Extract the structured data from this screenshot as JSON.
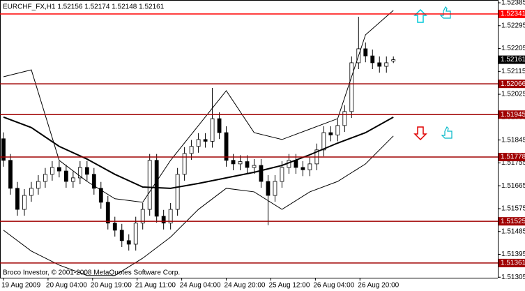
{
  "chart_data": {
    "type": "candlestick",
    "title": "EURCHF_FX,H1  1.52156 1.52174 1.52148 1.52161",
    "footer": "Broco Investor, © 2001-2008 MetaQuotes Software Corp.",
    "xlim": [
      -0.5,
      71
    ],
    "ylim": [
      1.51303,
      1.52396
    ],
    "xticks": [
      {
        "value": 0,
        "label": "19 Aug 2009"
      },
      {
        "value": 6.4,
        "label": "20 Aug 04:00"
      },
      {
        "value": 12.8,
        "label": "20 Aug 19:00"
      },
      {
        "value": 19.2,
        "label": "21 Aug 11:00"
      },
      {
        "value": 25.6,
        "label": "24 Aug 04:00"
      },
      {
        "value": 32,
        "label": "24 Aug 20:00"
      },
      {
        "value": 38.4,
        "label": "25 Aug 12:00"
      },
      {
        "value": 44.8,
        "label": "26 Aug 04:00"
      },
      {
        "value": 51.2,
        "label": "26 Aug 20:00"
      }
    ],
    "yticks": [
      1.52385,
      1.52295,
      1.52205,
      1.52115,
      1.52025,
      1.51935,
      1.51845,
      1.51755,
      1.51665,
      1.51575,
      1.51485,
      1.51395,
      1.51305
    ],
    "open": [
      1.5185,
      1.51765,
      1.51655,
      1.51572,
      1.51627,
      1.51655,
      1.51682,
      1.5171,
      1.51737,
      1.51723,
      1.51682,
      1.51696,
      1.51737,
      1.5171,
      1.51655,
      1.516,
      1.51518,
      1.5149,
      1.51449,
      1.51435,
      1.51518,
      1.51572,
      1.51765,
      1.51545,
      1.51518,
      1.51572,
      1.5171,
      1.51792,
      1.5182,
      1.51847,
      1.5184,
      1.51929,
      1.51874,
      1.51765,
      1.51751,
      1.5176,
      1.51737,
      1.51745,
      1.51682,
      1.51627,
      1.51682,
      1.51737,
      1.51765,
      1.51737,
      1.51728,
      1.51751,
      1.51806,
      1.51874,
      1.51865,
      1.51902,
      1.51957,
      1.52149,
      1.52204,
      1.52176,
      1.52149,
      1.52135,
      1.52156
    ],
    "high": [
      1.51875,
      1.5179,
      1.5168,
      1.51652,
      1.5168,
      1.51707,
      1.51735,
      1.51762,
      1.51762,
      1.51748,
      1.51721,
      1.51762,
      1.51762,
      1.51735,
      1.5168,
      1.51625,
      1.51543,
      1.51515,
      1.51474,
      1.51543,
      1.51597,
      1.5179,
      1.5179,
      1.5157,
      1.51597,
      1.51735,
      1.51817,
      1.51845,
      1.51872,
      1.51872,
      1.5205,
      1.51954,
      1.51899,
      1.5179,
      1.51785,
      1.51785,
      1.5177,
      1.5177,
      1.51707,
      1.51707,
      1.51762,
      1.5179,
      1.5179,
      1.51762,
      1.51776,
      1.51831,
      1.51899,
      1.51899,
      1.51927,
      1.51982,
      1.52174,
      1.5233,
      1.52229,
      1.52201,
      1.52174,
      1.52174,
      1.52174
    ],
    "low": [
      1.5174,
      1.5163,
      1.51547,
      1.51547,
      1.51602,
      1.5163,
      1.51657,
      1.51685,
      1.51698,
      1.51657,
      1.51657,
      1.51671,
      1.51685,
      1.5163,
      1.51575,
      1.51493,
      1.51465,
      1.51424,
      1.5141,
      1.5141,
      1.51493,
      1.51547,
      1.5152,
      1.51493,
      1.51493,
      1.51547,
      1.51685,
      1.51767,
      1.51795,
      1.51815,
      1.51815,
      1.51849,
      1.5174,
      1.51726,
      1.51726,
      1.51712,
      1.51712,
      1.51657,
      1.5151,
      1.51602,
      1.51657,
      1.51712,
      1.51712,
      1.51703,
      1.51703,
      1.51726,
      1.51781,
      1.5184,
      1.5184,
      1.51877,
      1.51932,
      1.52124,
      1.52151,
      1.52124,
      1.5211,
      1.5211,
      1.52148
    ],
    "close": [
      1.51765,
      1.51655,
      1.51572,
      1.51627,
      1.51655,
      1.51682,
      1.5171,
      1.51737,
      1.51723,
      1.51682,
      1.51696,
      1.51737,
      1.5171,
      1.51655,
      1.516,
      1.51518,
      1.5149,
      1.51449,
      1.51435,
      1.51518,
      1.51572,
      1.51765,
      1.51545,
      1.51518,
      1.51572,
      1.5171,
      1.51792,
      1.5182,
      1.51847,
      1.5184,
      1.51929,
      1.51874,
      1.51765,
      1.51751,
      1.5176,
      1.51737,
      1.51745,
      1.51682,
      1.51627,
      1.51682,
      1.51737,
      1.51765,
      1.51737,
      1.51728,
      1.51751,
      1.51806,
      1.51874,
      1.51865,
      1.51902,
      1.51957,
      1.52149,
      1.52204,
      1.52176,
      1.52149,
      1.52135,
      1.52149,
      1.52161
    ],
    "up_color": "#ffffff",
    "down_color": "#000000",
    "indicators": [
      {
        "color": "#000000",
        "width": 2,
        "x": [
          0,
          4,
          8,
          12,
          16,
          20,
          24,
          28,
          32,
          36,
          40,
          44,
          48,
          52,
          56
        ],
        "values": [
          1.51935,
          1.51894,
          1.5182,
          1.5177,
          1.5171,
          1.5166,
          1.51655,
          1.51674,
          1.51696,
          1.51718,
          1.51745,
          1.51787,
          1.51833,
          1.51874,
          1.51935
        ]
      },
      {
        "color": "#000000",
        "width": 1,
        "x": [
          0,
          4,
          8,
          12,
          16,
          20,
          24,
          28,
          32,
          36,
          40,
          44,
          48,
          52,
          56
        ],
        "values": [
          1.52094,
          1.52121,
          1.51765,
          1.51682,
          1.51614,
          1.516,
          1.51765,
          1.51902,
          1.52039,
          1.51874,
          1.51847,
          1.51888,
          1.51929,
          1.52259,
          1.52355
        ]
      },
      {
        "color": "#000000",
        "width": 1,
        "x": [
          0,
          4,
          8,
          12,
          16,
          20,
          24,
          28,
          32,
          36,
          40,
          44,
          48,
          52,
          56
        ],
        "values": [
          1.5149,
          1.51408,
          1.51353,
          1.51312,
          1.51312,
          1.5138,
          1.51463,
          1.51572,
          1.51655,
          1.51641,
          1.51572,
          1.51641,
          1.51682,
          1.51751,
          1.51861
        ]
      }
    ],
    "levels": [
      {
        "value": 1.52341,
        "color": "#ff0000"
      },
      {
        "value": 1.52066,
        "color": "#a00000"
      },
      {
        "value": 1.51945,
        "color": "#a00000"
      },
      {
        "value": 1.51778,
        "color": "#a00000"
      },
      {
        "value": 1.51525,
        "color": "#a00000"
      },
      {
        "value": 1.51361,
        "color": "#a00000"
      }
    ],
    "last_price": 1.52161
  }
}
